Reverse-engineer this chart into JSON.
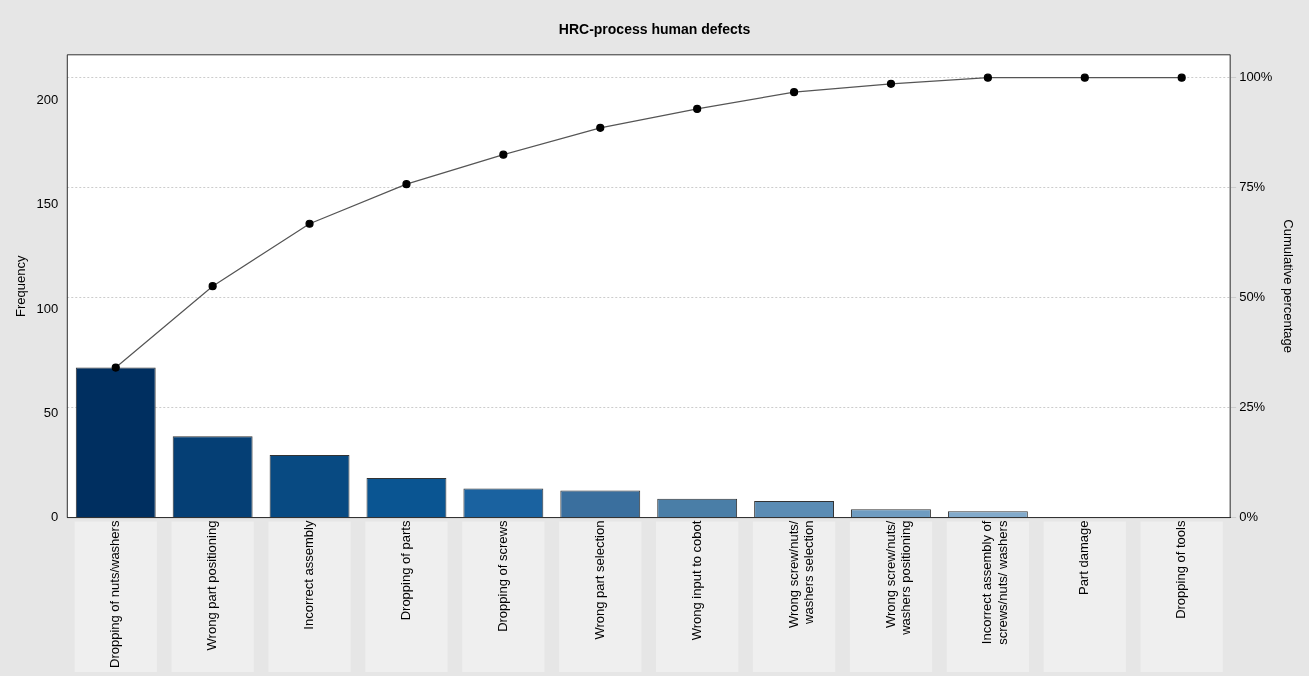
{
  "chart_data": {
    "type": "bar",
    "title": "HRC-process human defects",
    "ylabel": "Frequency",
    "y2label": "Cumulative percentage",
    "categories": [
      "Dropping of nuts/washers",
      "Wrong part positioning",
      "Incorrect assembly",
      "Dropping of parts",
      "Dropping of screws",
      "Wrong part selection",
      "Wrong input to cobot",
      "Wrong screw/nuts/ washers selection",
      "Wrong screw/nuts/ washers positioning",
      "Incorrect assembly of screws/nuts/ washers",
      "Part damage",
      "Dropping of tools"
    ],
    "series": [
      {
        "colors": [
          "#002f60",
          "#053f75",
          "#084a82",
          "#0a5592",
          "#1a62a0",
          "#3a6f9e",
          "#4a7ea7",
          "#5b8cb4",
          "#6f9cc1",
          "#82aacb",
          "#95b8d3",
          "#a8c6dc"
        ],
        "values": [
          72,
          39,
          30,
          19,
          14,
          13,
          9,
          8,
          4,
          3,
          0,
          0
        ]
      },
      {
        "type": "line",
        "axis": "y2",
        "color": "#555555",
        "values": [
          34.1,
          52.6,
          66.8,
          75.8,
          82.5,
          88.6,
          92.9,
          96.7,
          98.6,
          100,
          100,
          100
        ]
      }
    ],
    "ylim": [
      0,
      222
    ],
    "yticks": [
      0,
      50,
      100,
      150,
      200
    ],
    "y2lim": [
      0,
      105.2
    ],
    "y2ticks": [
      {
        "value": 0,
        "label": "0%"
      },
      {
        "value": 25,
        "label": "25%"
      },
      {
        "value": 50,
        "label": "50%"
      },
      {
        "value": 75,
        "label": "75%"
      },
      {
        "value": 100,
        "label": "100%"
      }
    ],
    "grid": true,
    "legend": false,
    "marker": "circle",
    "line_style": "solid"
  }
}
